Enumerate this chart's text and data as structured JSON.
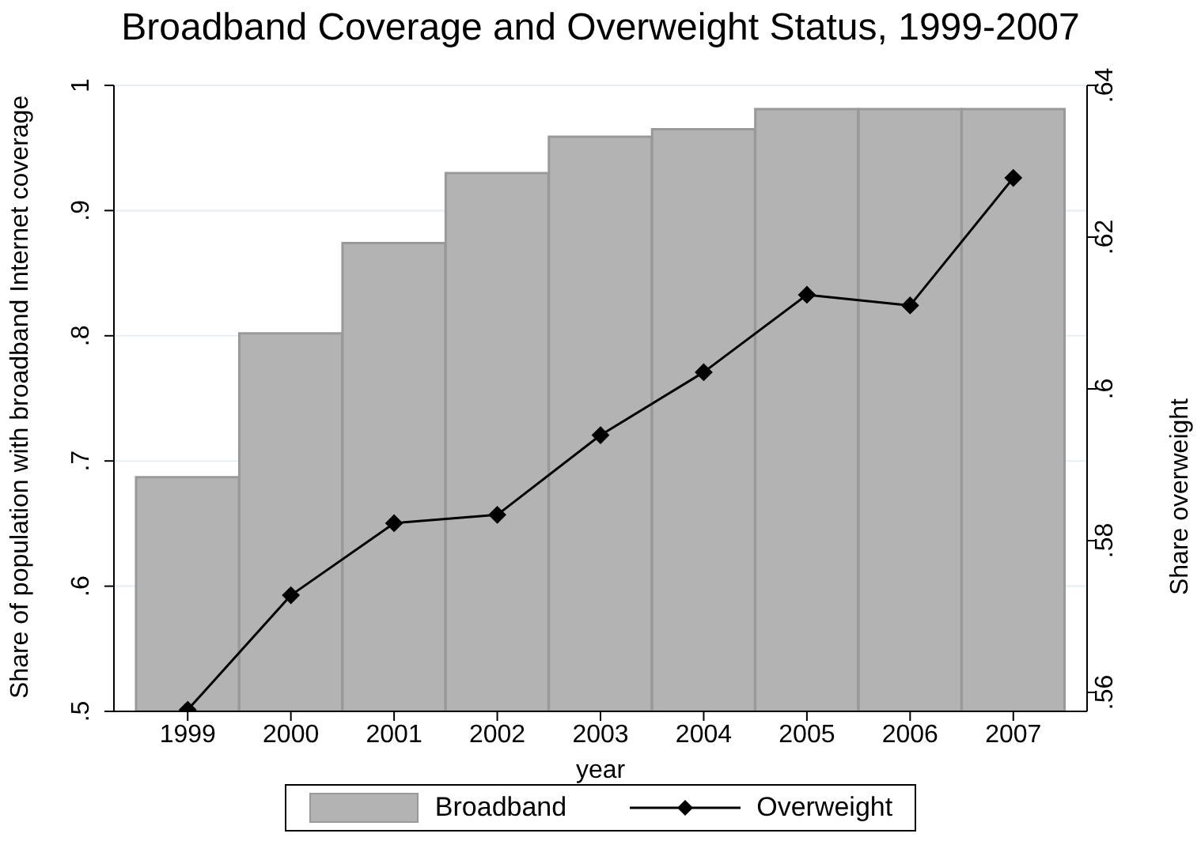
{
  "chart_data": {
    "type": "bar",
    "title": "Broadband Coverage and Overweight Status, 1999-2007",
    "xlabel": "year",
    "ylabel": "Share of population with broadband Internet coverage",
    "y2label": "Share overweight",
    "categories": [
      "1999",
      "2000",
      "2001",
      "2002",
      "2003",
      "2004",
      "2005",
      "2006",
      "2007"
    ],
    "series": [
      {
        "name": "Broadband",
        "color": "#b3b3b3",
        "values": [
          0.687,
          0.802,
          0.874,
          0.93,
          0.959,
          0.965,
          0.981,
          0.981,
          0.981
        ]
      },
      {
        "name": "Overweight",
        "type": "line",
        "axis": "y2",
        "color": "#000000",
        "values": [
          0.5577,
          0.5728,
          0.5823,
          0.5834,
          0.5939,
          0.6022,
          0.6124,
          0.611,
          0.6278
        ]
      }
    ],
    "ylim": [
      0.5,
      1
    ],
    "yticks": [
      {
        "value": 0.5,
        "label": ".5"
      },
      {
        "value": 0.6,
        "label": ".6"
      },
      {
        "value": 0.7,
        "label": ".7"
      },
      {
        "value": 0.8,
        "label": ".8"
      },
      {
        "value": 0.9,
        "label": ".9"
      },
      1
    ],
    "y2lim": [
      0.5575,
      0.64
    ],
    "y2ticks": [
      {
        "value": 0.56,
        "label": ".56"
      },
      {
        "value": 0.58,
        "label": ".58"
      },
      {
        "value": 0.6,
        "label": ".6"
      },
      {
        "value": 0.62,
        "label": ".62"
      },
      {
        "value": 0.64,
        "label": ".64"
      }
    ],
    "grid": "y",
    "legend": "bottom",
    "marker": "diamond",
    "line_style": "solid"
  }
}
